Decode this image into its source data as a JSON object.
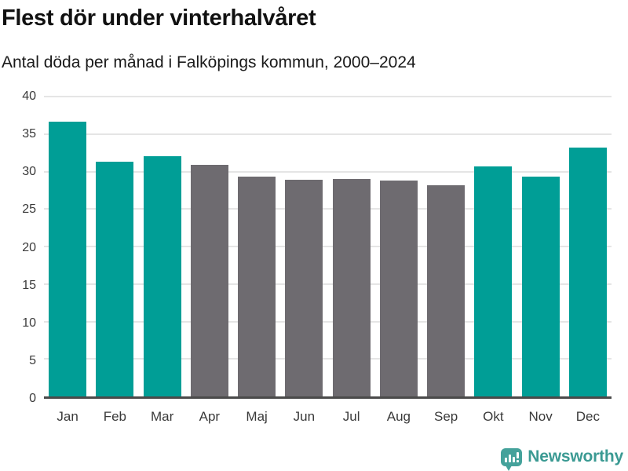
{
  "chart_data": {
    "type": "bar",
    "title": "Flest dör under vinterhalvåret",
    "subtitle": "Antal döda per månad i Falköpings kommun, 2000–2024",
    "categories": [
      "Jan",
      "Feb",
      "Mar",
      "Apr",
      "Maj",
      "Jun",
      "Jul",
      "Aug",
      "Sep",
      "Okt",
      "Nov",
      "Dec"
    ],
    "values": [
      36.7,
      31.3,
      32.0,
      30.9,
      29.3,
      28.9,
      29.0,
      28.8,
      28.2,
      30.7,
      29.3,
      33.2
    ],
    "bar_colors": [
      "teal",
      "teal",
      "teal",
      "gray",
      "gray",
      "gray",
      "gray",
      "gray",
      "gray",
      "teal",
      "teal",
      "teal"
    ],
    "colors": {
      "teal": "#009e96",
      "gray": "#6e6b70"
    },
    "highlight_meaning": "winter half-year months highlighted in teal",
    "xlabel": "",
    "ylabel": "",
    "ylim": [
      0,
      40
    ],
    "yticks": [
      0,
      5,
      10,
      15,
      20,
      25,
      30,
      35,
      40
    ],
    "grid": true,
    "legend": false
  },
  "footer": {
    "brand": "Newsworthy",
    "brand_color": "#3b9a93",
    "logo_icon": "bar-chart-speech-bubble"
  }
}
